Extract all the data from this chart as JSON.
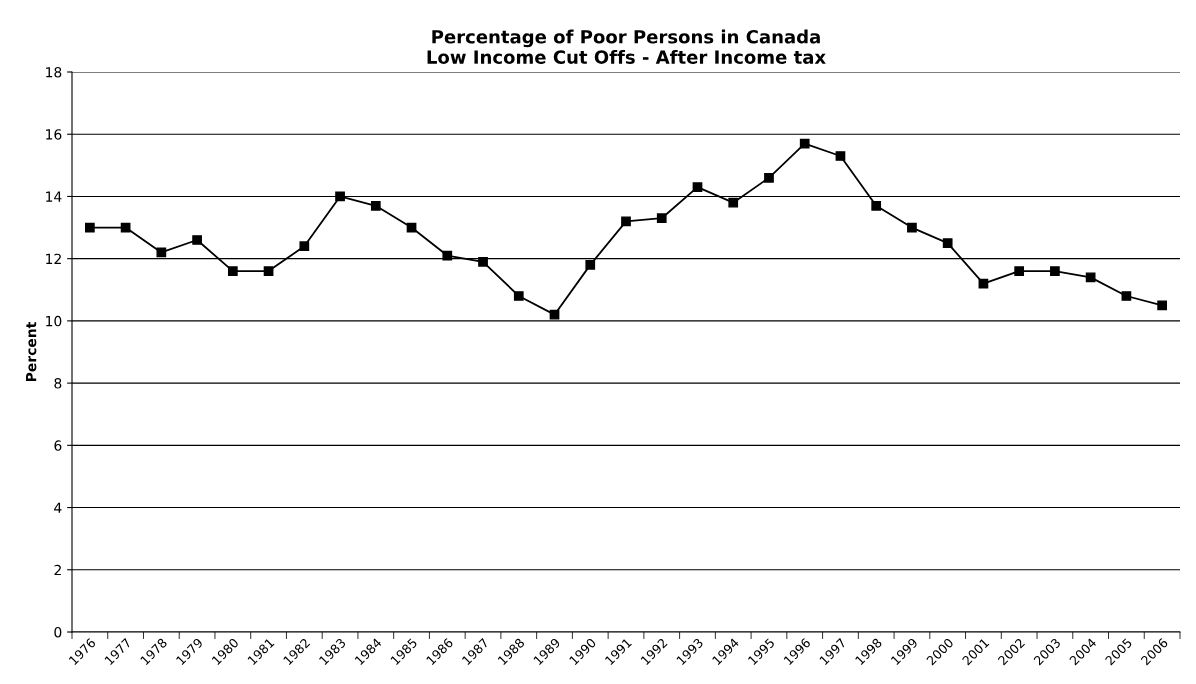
{
  "chart_data": {
    "type": "line",
    "title": "Percentage of Poor Persons in Canada\nLow Income Cut Offs - After Income tax",
    "ylabel": "Percent",
    "categories": [
      "1976",
      "1977",
      "1978",
      "1979",
      "1980",
      "1981",
      "1982",
      "1983",
      "1984",
      "1985",
      "1986",
      "1987",
      "1988",
      "1989",
      "1990",
      "1991",
      "1992",
      "1993",
      "1994",
      "1995",
      "1996",
      "1997",
      "1998",
      "1999",
      "2000",
      "2001",
      "2002",
      "2003",
      "2004",
      "2005",
      "2006"
    ],
    "series": [
      {
        "color": "#000000",
        "values": [
          13.0,
          13.0,
          12.2,
          12.6,
          11.6,
          11.6,
          12.4,
          14.0,
          13.7,
          13.0,
          12.1,
          11.9,
          10.8,
          10.2,
          11.8,
          13.2,
          13.3,
          14.3,
          13.8,
          14.6,
          15.7,
          15.3,
          13.7,
          13.0,
          12.5,
          11.2,
          11.6,
          11.6,
          11.4,
          10.8,
          10.5
        ]
      }
    ],
    "ylim": [
      0,
      18
    ],
    "yticks": [
      0,
      2,
      4,
      6,
      8,
      10,
      12,
      14,
      16,
      18
    ],
    "grid": "y",
    "marker": "square",
    "line_style": "solid"
  }
}
